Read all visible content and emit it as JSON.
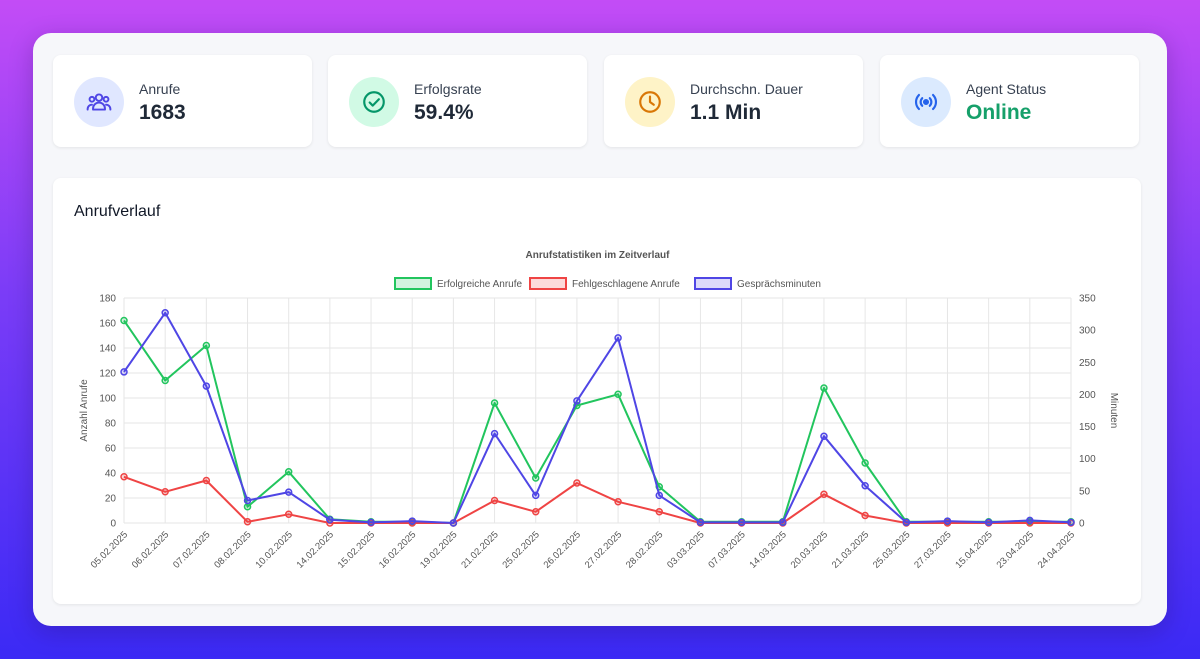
{
  "stats": [
    {
      "label": "Anrufe",
      "value": "1683",
      "icon": "users-icon",
      "icon_bg": "#e0e7ff",
      "icon_color": "#4f46e5"
    },
    {
      "label": "Erfolgsrate",
      "value": "59.4%",
      "icon": "check-circle-icon",
      "icon_bg": "#d1fae5",
      "icon_color": "#059669"
    },
    {
      "label": "Durchschn. Dauer",
      "value": "1.1 Min",
      "icon": "clock-icon",
      "icon_bg": "#fef3c7",
      "icon_color": "#d97706"
    },
    {
      "label": "Agent Status",
      "value": "Online",
      "icon": "broadcast-icon",
      "icon_bg": "#dbeafe",
      "icon_color": "#2563eb",
      "value_color": "#16a06a"
    }
  ],
  "chart_section": {
    "heading": "Anrufverlauf"
  },
  "chart_data": {
    "type": "line",
    "title": "Anrufstatistiken im Zeitverlauf",
    "ylabel": "Anzahl Anrufe",
    "y2label": "Minuten",
    "ylim": [
      0,
      180
    ],
    "y2lim": [
      0,
      350
    ],
    "yticks": [
      0,
      20,
      40,
      60,
      80,
      100,
      120,
      140,
      160,
      180
    ],
    "y2ticks": [
      0,
      50,
      100,
      150,
      200,
      250,
      300,
      350
    ],
    "grid": true,
    "legend_position": "top",
    "categories": [
      "05.02.2025",
      "06.02.2025",
      "07.02.2025",
      "08.02.2025",
      "10.02.2025",
      "14.02.2025",
      "15.02.2025",
      "16.02.2025",
      "19.02.2025",
      "21.02.2025",
      "25.02.2025",
      "26.02.2025",
      "27.02.2025",
      "28.02.2025",
      "03.03.2025",
      "07.03.2025",
      "14.03.2025",
      "20.03.2025",
      "21.03.2025",
      "25.03.2025",
      "27.03.2025",
      "15.04.2025",
      "23.04.2025",
      "24.04.2025"
    ],
    "series": [
      {
        "name": "Erfolgreiche Anrufe",
        "axis": "left",
        "color": "#22c55e",
        "fill": "rgba(34,197,94,0.2)",
        "values": [
          162,
          114,
          142,
          13,
          41,
          3,
          1,
          1,
          0,
          96,
          36,
          94,
          103,
          29,
          1,
          1,
          1,
          108,
          48,
          1,
          1,
          1,
          1,
          1
        ]
      },
      {
        "name": "Fehlgeschlagene Anrufe",
        "axis": "left",
        "color": "#ef4444",
        "fill": "rgba(239,68,68,0.2)",
        "values": [
          37,
          25,
          34,
          1,
          7,
          0,
          0,
          0,
          0,
          18,
          9,
          32,
          17,
          9,
          0,
          0,
          0,
          23,
          6,
          0,
          0,
          0,
          0,
          0
        ]
      },
      {
        "name": "Gesprächsminuten",
        "axis": "right",
        "color": "#4f46e5",
        "fill": "rgba(79,70,229,0.2)",
        "values": [
          235,
          327,
          213,
          35,
          48,
          5,
          1,
          3,
          0,
          139,
          43,
          190,
          288,
          43,
          1,
          1,
          1,
          135,
          58,
          1,
          3,
          1,
          4,
          1
        ]
      }
    ]
  }
}
